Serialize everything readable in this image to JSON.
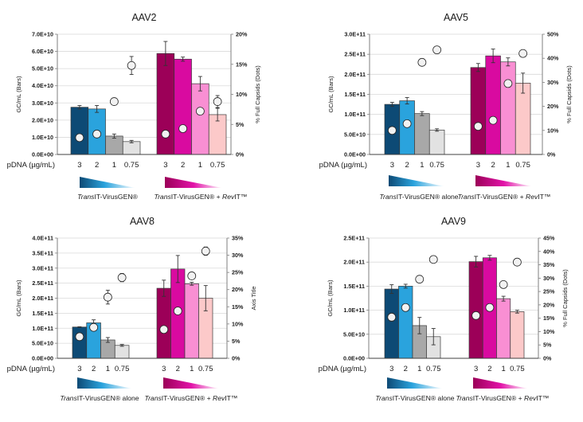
{
  "chart_data": [
    {
      "type": "bar",
      "title": "AAV2",
      "ylabel": "GC/mL (Bars)",
      "y2label": "% Full Capsids (Dots)",
      "xlabel": "pDNA (µg/mL)",
      "ylim": [
        0,
        70000000000.0
      ],
      "yticks": [
        "0.0E+00",
        "1.0E+10",
        "2.0E+10",
        "3.0E+10",
        "4.0E+10",
        "5.0E+10",
        "6.0E+10",
        "7.0E+10"
      ],
      "y2lim": [
        0,
        20
      ],
      "y2ticks": [
        "0%",
        "5%",
        "10%",
        "15%",
        "20%"
      ],
      "grid": true,
      "groups": [
        {
          "legend": {
            "italic": "Trans",
            "rest": "IT-VirusGEN®"
          },
          "categories": [
            "3",
            "2",
            "1",
            "0.75"
          ],
          "colors": [
            "#0d4a75",
            "#2aa3dd",
            "#a8a8a8",
            "#e2e2e2"
          ],
          "bars": [
            27500000000.0,
            26500000000.0,
            10700000000.0,
            7500000000.0
          ],
          "bar_err": [
            1000000000.0,
            2000000000.0,
            1200000000.0,
            700000000.0
          ],
          "dots": [
            2.8,
            3.4,
            8.8,
            14.8
          ],
          "dot_err": [
            0,
            0,
            0,
            1.5
          ]
        },
        {
          "legend": {
            "italic": "Trans",
            "rest": "IT-VirusGEN® + ",
            "italic2": "Rev",
            "rest2": "IT™"
          },
          "categories": [
            "3",
            "2",
            "1",
            "0.75"
          ],
          "colors": [
            "#9c0058",
            "#d90aa0",
            "#f98fd3",
            "#fcc9c9"
          ],
          "bars": [
            58800000000.0,
            55500000000.0,
            41200000000.0,
            23200000000.0
          ],
          "bar_err": [
            7000000000.0,
            1200000000.0,
            4200000000.0,
            3700000000.0
          ],
          "dots": [
            3.4,
            4.3,
            7.2,
            8.8
          ],
          "dot_err": [
            0,
            0,
            0,
            1.0
          ]
        }
      ]
    },
    {
      "type": "bar",
      "title": "AAV5",
      "ylabel": "GC/mL (Bars)",
      "y2label": "% Full Capsids (Dots)",
      "xlabel": "pDNA (µg/mL)",
      "ylim": [
        0,
        300000000000.0
      ],
      "yticks": [
        "0.0E+00",
        "5.0E+10",
        "1.0E+11",
        "1.5E+11",
        "2.0E+11",
        "2.5E+11",
        "3.0E+11"
      ],
      "y2lim": [
        0,
        50
      ],
      "y2ticks": [
        "0%",
        "10%",
        "20%",
        "30%",
        "40%",
        "50%"
      ],
      "grid": true,
      "groups": [
        {
          "legend": {
            "italic": "Trans",
            "rest": "IT-VirusGEN® alone"
          },
          "categories": [
            "3",
            "2",
            "1",
            "0.75"
          ],
          "colors": [
            "#0d4a75",
            "#2aa3dd",
            "#a8a8a8",
            "#e2e2e2"
          ],
          "bars": [
            125000000000.0,
            134000000000.0,
            102000000000.0,
            61000000000.0
          ],
          "bar_err": [
            5000000000.0,
            8000000000.0,
            5000000000.0,
            3000000000.0
          ],
          "dots": [
            10.0,
            12.8,
            38.3,
            43.5
          ],
          "dot_err": [
            0,
            0,
            0,
            0
          ]
        },
        {
          "legend": {
            "italic": "Trans",
            "rest": "IT-VirusGEN® + ",
            "italic2": "Rev",
            "rest2": "IT™"
          },
          "categories": [
            "3",
            "2",
            "1",
            "0.75"
          ],
          "colors": [
            "#9c0058",
            "#d90aa0",
            "#f98fd3",
            "#fcc9c9"
          ],
          "bars": [
            217000000000.0,
            246000000000.0,
            231000000000.0,
            178000000000.0
          ],
          "bar_err": [
            10000000000.0,
            17000000000.0,
            10000000000.0,
            25000000000.0
          ],
          "dots": [
            11.7,
            14.2,
            29.5,
            42.0
          ],
          "dot_err": [
            0,
            0,
            1.5,
            0
          ]
        }
      ]
    },
    {
      "type": "bar",
      "title": "AAV8",
      "ylabel": "GC/mL (Bars)",
      "y2label": "Axis Title",
      "xlabel": "pDNA (µg/mL)",
      "ylim": [
        0,
        400000000000.0
      ],
      "yticks": [
        "0.0E+00",
        "5.0E+10",
        "1.0E+11",
        "1.5E+11",
        "2.0E+11",
        "2.5E+11",
        "3.0E+11",
        "3.5E+11",
        "4.0E+11"
      ],
      "y2lim": [
        0,
        35
      ],
      "y2ticks": [
        "0%",
        "5%",
        "10%",
        "15%",
        "20%",
        "25%",
        "30%",
        "35%"
      ],
      "grid": true,
      "groups": [
        {
          "legend": {
            "italic": "Trans",
            "rest": "IT-VirusGEN® alone"
          },
          "categories": [
            "3",
            "2",
            "1",
            "0.75"
          ],
          "colors": [
            "#0d4a75",
            "#2aa3dd",
            "#a8a8a8",
            "#e2e2e2"
          ],
          "bars": [
            104000000000.0,
            118000000000.0,
            61000000000.0,
            43000000000.0
          ],
          "bar_err": [
            1000000000.0,
            10000000000.0,
            8000000000.0,
            3000000000.0
          ],
          "dots": [
            6.3,
            9.0,
            17.8,
            23.5
          ],
          "dot_err": [
            0,
            0,
            2.0,
            1.2
          ]
        },
        {
          "legend": {
            "italic": "Trans",
            "rest": "IT-VirusGEN® + ",
            "italic2": "Rev",
            "rest2": "IT™"
          },
          "categories": [
            "3",
            "2",
            "1",
            "0.75"
          ],
          "colors": [
            "#9c0058",
            "#d90aa0",
            "#f98fd3",
            "#fcc9c9"
          ],
          "bars": [
            233000000000.0,
            297000000000.0,
            248000000000.0,
            200000000000.0
          ],
          "bar_err": [
            27000000000.0,
            45000000000.0,
            5000000000.0,
            42000000000.0
          ],
          "dots": [
            8.4,
            13.8,
            24.0,
            31.2
          ],
          "dot_err": [
            0,
            0,
            0,
            1.2
          ]
        }
      ]
    },
    {
      "type": "bar",
      "title": "AAV9",
      "ylabel": "GC/mL (Bars)",
      "y2label": "% Full Capsids (Dots)",
      "xlabel": "pDNA (µg/mL)",
      "ylim": [
        0,
        250000000000.0
      ],
      "yticks": [
        "0.0E+00",
        "5.0E+10",
        "1.0E+11",
        "1.5E+11",
        "2.0E+11",
        "2.5E+11"
      ],
      "y2lim": [
        0,
        45
      ],
      "y2ticks": [
        "0%",
        "5%",
        "10%",
        "15%",
        "20%",
        "25%",
        "30%",
        "35%",
        "40%",
        "45%"
      ],
      "grid": true,
      "groups": [
        {
          "legend": {
            "italic": "Trans",
            "rest": "IT-VirusGEN® alone"
          },
          "categories": [
            "3",
            "2",
            "1",
            "0.75"
          ],
          "colors": [
            "#0d4a75",
            "#2aa3dd",
            "#a8a8a8",
            "#e2e2e2"
          ],
          "bars": [
            144000000000.0,
            150000000000.0,
            68000000000.0,
            45000000000.0
          ],
          "bar_err": [
            9000000000.0,
            4000000000.0,
            17000000000.0,
            17000000000.0
          ],
          "dots": [
            15.4,
            19.0,
            29.6,
            37.0
          ],
          "dot_err": [
            1.5,
            0,
            0,
            0
          ]
        },
        {
          "legend": {
            "italic": "Trans",
            "rest": "IT-VirusGEN® + ",
            "italic2": "Rev",
            "rest2": "IT™"
          },
          "categories": [
            "3",
            "2",
            "1",
            "0.75"
          ],
          "colors": [
            "#9c0058",
            "#d90aa0",
            "#f98fd3",
            "#fcc9c9"
          ],
          "bars": [
            201000000000.0,
            209000000000.0,
            124000000000.0,
            97000000000.0
          ],
          "bar_err": [
            11000000000.0,
            5000000000.0,
            5000000000.0,
            3000000000.0
          ],
          "dots": [
            16.0,
            19.0,
            27.6,
            36.0
          ],
          "dot_err": [
            0,
            0,
            0,
            0
          ]
        }
      ]
    }
  ],
  "colors": {
    "axis": "#7f7f7f",
    "grid": "#d9d9d9",
    "bar_outline": "#3a3a3a",
    "dot_fill": "#f2f2f2",
    "dot_stroke": "#262626",
    "gradient_blue": [
      "#0d4a75",
      "#2aa3dd",
      "#ffffff"
    ],
    "gradient_magenta": [
      "#9c0058",
      "#d90aa0",
      "#ffffff"
    ]
  }
}
